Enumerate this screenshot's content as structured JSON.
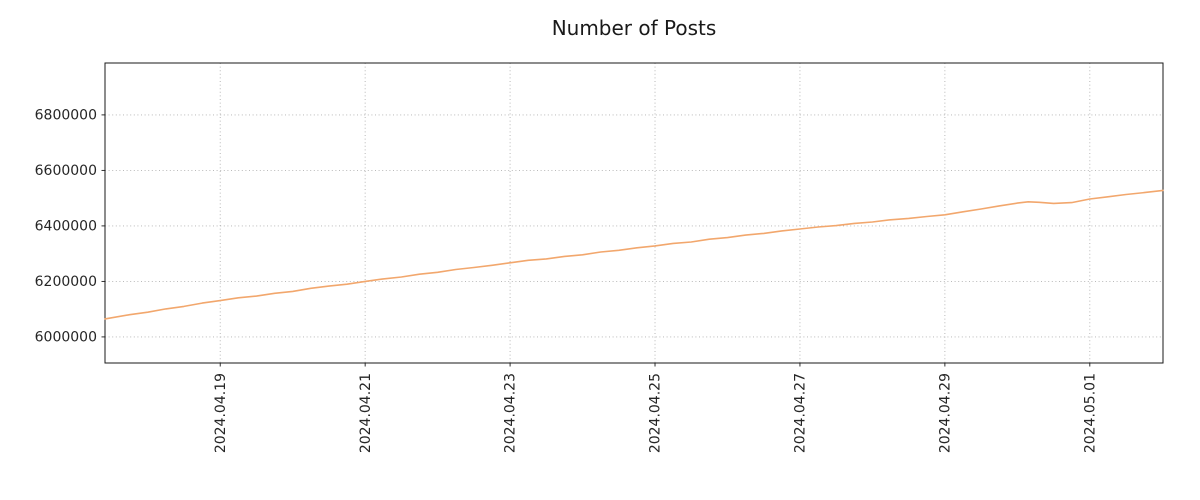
{
  "chart_data": {
    "type": "line",
    "title": "Number of Posts",
    "xlabel": "",
    "ylabel": "",
    "x_range": [
      -1.59,
      13.01
    ],
    "y_range": [
      5906000,
      6987000
    ],
    "grid": true,
    "legend": "none",
    "x_tick_values": [
      0,
      2,
      4,
      6,
      8,
      10,
      12
    ],
    "x_tick_labels": [
      "2024.04.19",
      "2024.04.21",
      "2024.04.23",
      "2024.04.25",
      "2024.04.27",
      "2024.04.29",
      "2024.05.01"
    ],
    "y_tick_values": [
      6000000,
      6200000,
      6400000,
      6600000,
      6800000
    ],
    "y_tick_labels": [
      "6000000",
      "6200000",
      "6400000",
      "6600000",
      "6800000"
    ],
    "colors": {
      "line": "#f2a76d",
      "grid": "#b0b0b0",
      "frame": "#1a1a1a",
      "text": "#262626",
      "background": "#ffffff"
    },
    "series": [
      {
        "name": "Number of Posts",
        "color": "#f2a76d",
        "x_unit": "days relative to 2024.04.19 tick",
        "x": [
          -1.59,
          -1.25,
          -1.0,
          -0.75,
          -0.5,
          -0.25,
          0,
          0.25,
          0.5,
          0.75,
          1.0,
          1.25,
          1.5,
          1.75,
          2.0,
          2.25,
          2.5,
          2.75,
          3.0,
          3.25,
          3.5,
          3.75,
          4.0,
          4.25,
          4.5,
          4.75,
          5.0,
          5.25,
          5.5,
          5.75,
          6.0,
          6.25,
          6.5,
          6.75,
          7.0,
          7.25,
          7.5,
          7.75,
          8.0,
          8.25,
          8.5,
          8.75,
          9.0,
          9.25,
          9.5,
          9.75,
          10.0,
          10.25,
          10.5,
          10.75,
          11.0,
          11.15,
          11.3,
          11.5,
          11.75,
          12.0,
          12.25,
          12.5,
          12.75,
          13.01
        ],
        "y": [
          6065000,
          6080000,
          6089000,
          6101000,
          6110000,
          6122000,
          6131000,
          6141000,
          6147000,
          6157000,
          6164000,
          6175000,
          6183000,
          6190000,
          6200000,
          6209000,
          6216000,
          6226000,
          6233000,
          6243000,
          6250000,
          6258000,
          6267000,
          6276000,
          6281000,
          6290000,
          6296000,
          6306000,
          6312000,
          6321000,
          6328000,
          6337000,
          6342000,
          6352000,
          6358000,
          6367000,
          6373000,
          6382000,
          6389000,
          6396000,
          6401000,
          6409000,
          6414000,
          6422000,
          6427000,
          6434000,
          6440000,
          6451000,
          6461000,
          6472000,
          6482000,
          6487000,
          6485000,
          6481000,
          6484000,
          6497000,
          6505000,
          6513000,
          6520000,
          6528000
        ]
      }
    ]
  }
}
